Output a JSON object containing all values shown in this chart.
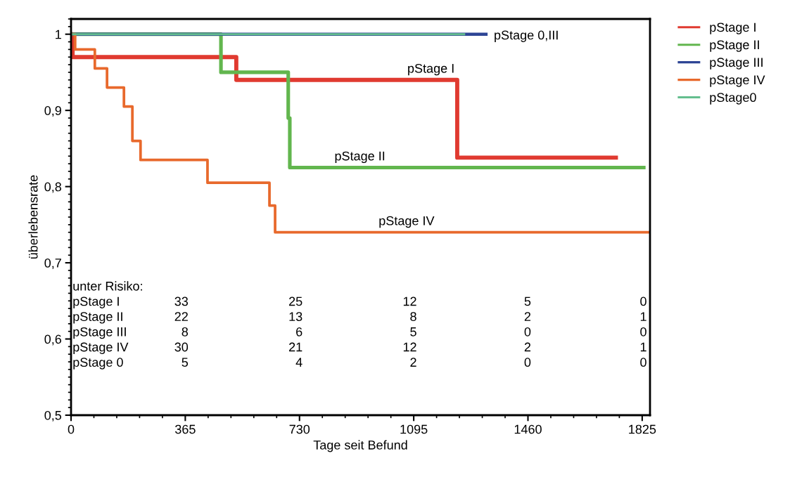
{
  "chart_data": {
    "type": "step",
    "xlabel": "Tage seit Befund",
    "ylabel": "überlebensrate",
    "xlim": [
      0,
      1850
    ],
    "ylim": [
      0.5,
      1.02
    ],
    "xticks": [
      0,
      365,
      730,
      1095,
      1460,
      1825
    ],
    "yticks": [
      {
        "value": 0.5,
        "label": "0,5"
      },
      {
        "value": 0.6,
        "label": "0,6"
      },
      {
        "value": 0.7,
        "label": "0,7"
      },
      {
        "value": 0.8,
        "label": "0,8"
      },
      {
        "value": 0.9,
        "label": "0,9"
      },
      {
        "value": 1,
        "label": "1"
      }
    ],
    "grid": false,
    "legend": "right",
    "line_style": "solid",
    "marker": "none",
    "series": [
      {
        "name": "pStage I",
        "color": "#e03a30",
        "x": [
          0,
          5,
          528,
          1234,
          1741
        ],
        "values": [
          1,
          0.97,
          0.94,
          0.838,
          0.838
        ]
      },
      {
        "name": "pStage II",
        "color": "#62b64e",
        "x": [
          0,
          479,
          694,
          699,
          1830
        ],
        "values": [
          1,
          0.95,
          0.89,
          0.825,
          0.825
        ]
      },
      {
        "name": "pStage III",
        "color": "#2e4595",
        "x": [
          0,
          1326
        ],
        "values": [
          1,
          1
        ]
      },
      {
        "name": "pStage IV",
        "color": "#e8692c",
        "x": [
          0,
          13,
          76,
          115,
          169,
          196,
          222,
          436,
          634,
          652,
          1850
        ],
        "values": [
          1,
          0.98,
          0.955,
          0.93,
          0.905,
          0.86,
          0.835,
          0.805,
          0.775,
          0.74,
          0.74
        ]
      },
      {
        "name": "pStage0",
        "color": "#64be8e",
        "x": [
          0,
          1256
        ],
        "values": [
          1,
          1
        ]
      }
    ],
    "annotations": [
      {
        "text": "pStage I",
        "x": 1150,
        "y": 0.94
      },
      {
        "text": "pStage II",
        "x": 923,
        "y": 0.825
      },
      {
        "text": "pStage IV",
        "x": 1072,
        "y": 0.74
      },
      {
        "text": "pStage 0,III",
        "x": 1326,
        "y": 1
      },
      "unter Risiko:",
      "pStage I",
      "33",
      "25",
      "12",
      "5",
      "0",
      "pStage II",
      "22",
      "13",
      "8",
      "2",
      "1",
      "pStage III",
      "8",
      "6",
      "5",
      "0",
      "0",
      "pStage IV",
      "30",
      "21",
      "12",
      "2",
      "1",
      "pStage 0",
      "5",
      "4",
      "2",
      "0",
      "0"
    ]
  }
}
